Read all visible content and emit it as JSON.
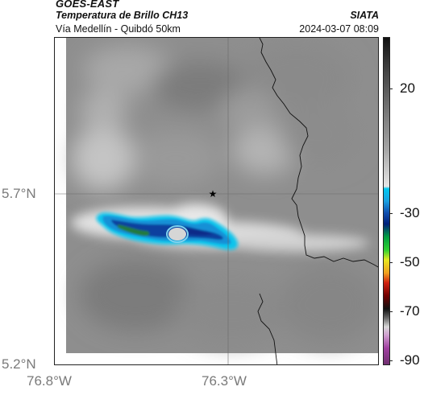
{
  "header": {
    "title_line1": "GOES-EAST",
    "title_line2": "Temperatura de Brillo CH13",
    "subtitle": "Vía Medellín - Quibdó 50km",
    "agency": "SIATA",
    "datetime": "2024-03-07 08:09"
  },
  "map": {
    "y_labels": [
      "5.7°N",
      "5.2°N"
    ],
    "x_labels": [
      "76.8°W",
      "76.3°W"
    ],
    "marker": "star-marker"
  },
  "colorbar": {
    "labels": [
      "20",
      "-30",
      "-50",
      "-70",
      "-90"
    ],
    "colors": {
      "warm": "#101010",
      "mid": "#a4a4a4",
      "cold_cyan": "#00c8f0",
      "cold_blue": "#00207a",
      "green": "#30d030",
      "yellow": "#e8e820",
      "red": "#d02010",
      "purple": "#a040a0"
    }
  }
}
